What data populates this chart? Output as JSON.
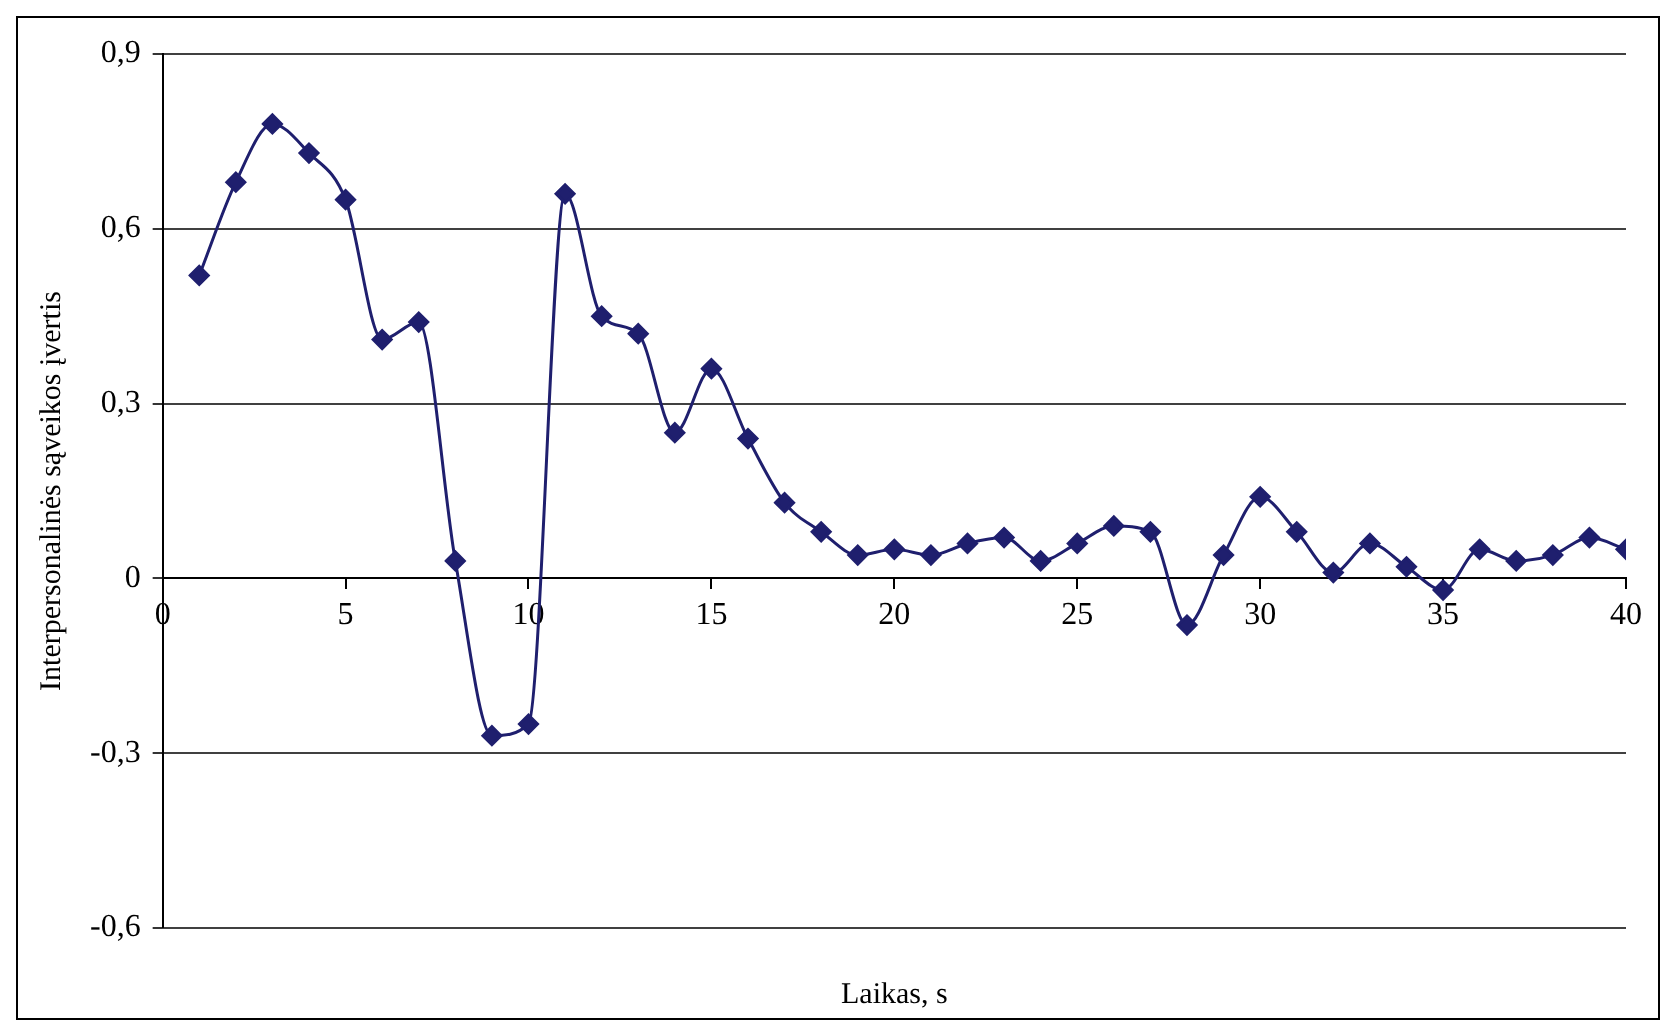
{
  "chart_data": {
    "type": "line",
    "xlabel": "Laikas, s",
    "ylabel": "Interpersonalinės sąveikos įvertis",
    "x": [
      1,
      2,
      3,
      4,
      5,
      6,
      7,
      8,
      9,
      10,
      11,
      12,
      13,
      14,
      15,
      16,
      17,
      18,
      19,
      20,
      21,
      22,
      23,
      24,
      25,
      26,
      27,
      28,
      29,
      30,
      31,
      32,
      33,
      34,
      35,
      36,
      37,
      38,
      39,
      40
    ],
    "series": [
      {
        "color": "#1f1f6e",
        "values": [
          0.52,
          0.68,
          0.78,
          0.73,
          0.65,
          0.41,
          0.44,
          0.03,
          -0.27,
          -0.25,
          0.66,
          0.45,
          0.42,
          0.25,
          0.36,
          0.24,
          0.13,
          0.08,
          0.04,
          0.05,
          0.04,
          0.06,
          0.07,
          0.03,
          0.06,
          0.09,
          0.08,
          -0.08,
          0.04,
          0.14,
          0.08,
          0.01,
          0.06,
          0.02,
          -0.02,
          0.05,
          0.03,
          0.04,
          0.07,
          0.05
        ]
      }
    ],
    "xlim": [
      0,
      40
    ],
    "xticks": [
      0,
      5,
      10,
      15,
      20,
      25,
      30,
      35,
      40
    ],
    "ylim": [
      -0.6,
      0.9
    ],
    "yticks": [
      {
        "value": -0.6,
        "label": "-0,6"
      },
      {
        "value": -0.3,
        "label": "-0,3"
      },
      {
        "value": 0,
        "label": "0"
      },
      {
        "value": 0.3,
        "label": "0,3"
      },
      {
        "value": 0.6,
        "label": "0,6"
      },
      {
        "value": 0.9,
        "label": "0,9"
      }
    ],
    "grid": "y",
    "legend": false,
    "marker": "diamond",
    "line_style": "solid"
  }
}
